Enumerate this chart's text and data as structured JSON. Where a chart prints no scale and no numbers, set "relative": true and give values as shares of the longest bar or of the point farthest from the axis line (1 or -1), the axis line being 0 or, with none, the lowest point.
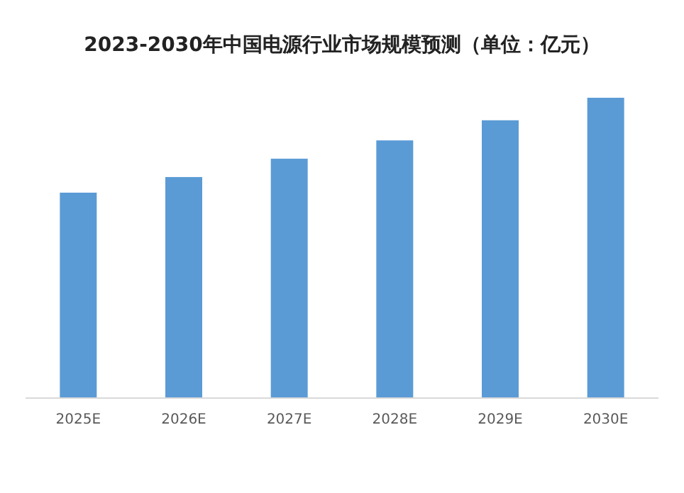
{
  "chart_data": {
    "type": "bar",
    "title": "2023-2030年中国电源行业市场规模预测（单位：亿元）",
    "categories": [
      "2025E",
      "2026E",
      "2027E",
      "2028E",
      "2029E",
      "2030E"
    ],
    "values": [
      0.684,
      0.736,
      0.797,
      0.858,
      0.925,
      1
    ],
    "color": "#5b9bd5",
    "relative": true
  }
}
